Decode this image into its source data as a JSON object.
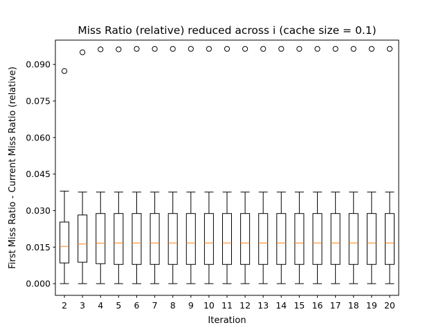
{
  "chart_data": {
    "type": "box",
    "title": "Miss Ratio (relative) reduced across i (cache size = 0.1)",
    "xlabel": "Iteration",
    "ylabel": "First Miss Ratio - Current Miss Ratio (relative)",
    "ylim": [
      -0.0048,
      0.1
    ],
    "yticks": [
      0.0,
      0.015,
      0.03,
      0.045,
      0.06,
      0.075,
      0.09
    ],
    "ytick_labels": [
      "0.000",
      "0.015",
      "0.030",
      "0.045",
      "0.060",
      "0.075",
      "0.090"
    ],
    "grid": false,
    "categories": [
      "2",
      "3",
      "4",
      "5",
      "6",
      "7",
      "8",
      "9",
      "10",
      "11",
      "12",
      "13",
      "14",
      "15",
      "16",
      "17",
      "18",
      "19",
      "20"
    ],
    "boxes": [
      {
        "label": "2",
        "whisker_low": 0.0,
        "q1": 0.0085,
        "median": 0.0153,
        "q3": 0.0253,
        "whisker_high": 0.038,
        "fliers": [
          0.0873
        ]
      },
      {
        "label": "3",
        "whisker_low": 0.0,
        "q1": 0.0088,
        "median": 0.0163,
        "q3": 0.0282,
        "whisker_high": 0.0376,
        "fliers": [
          0.095
        ]
      },
      {
        "label": "4",
        "whisker_low": 0.0,
        "q1": 0.0082,
        "median": 0.0166,
        "q3": 0.0288,
        "whisker_high": 0.0376,
        "fliers": [
          0.0962
        ]
      },
      {
        "label": "5",
        "whisker_low": 0.0,
        "q1": 0.0079,
        "median": 0.0167,
        "q3": 0.0288,
        "whisker_high": 0.0376,
        "fliers": [
          0.0962
        ]
      },
      {
        "label": "6",
        "whisker_low": 0.0,
        "q1": 0.0079,
        "median": 0.0167,
        "q3": 0.0288,
        "whisker_high": 0.0376,
        "fliers": [
          0.0964
        ]
      },
      {
        "label": "7",
        "whisker_low": 0.0,
        "q1": 0.0079,
        "median": 0.0167,
        "q3": 0.0288,
        "whisker_high": 0.0376,
        "fliers": [
          0.0964
        ]
      },
      {
        "label": "8",
        "whisker_low": 0.0,
        "q1": 0.0079,
        "median": 0.0167,
        "q3": 0.0288,
        "whisker_high": 0.0376,
        "fliers": [
          0.0964
        ]
      },
      {
        "label": "9",
        "whisker_low": 0.0,
        "q1": 0.0079,
        "median": 0.0167,
        "q3": 0.0288,
        "whisker_high": 0.0376,
        "fliers": [
          0.0964
        ]
      },
      {
        "label": "10",
        "whisker_low": 0.0,
        "q1": 0.0079,
        "median": 0.0167,
        "q3": 0.0288,
        "whisker_high": 0.0376,
        "fliers": [
          0.0964
        ]
      },
      {
        "label": "11",
        "whisker_low": 0.0,
        "q1": 0.0079,
        "median": 0.0167,
        "q3": 0.0288,
        "whisker_high": 0.0376,
        "fliers": [
          0.0964
        ]
      },
      {
        "label": "12",
        "whisker_low": 0.0,
        "q1": 0.0079,
        "median": 0.0167,
        "q3": 0.0288,
        "whisker_high": 0.0376,
        "fliers": [
          0.0964
        ]
      },
      {
        "label": "13",
        "whisker_low": 0.0,
        "q1": 0.0079,
        "median": 0.0167,
        "q3": 0.0288,
        "whisker_high": 0.0376,
        "fliers": [
          0.0964
        ]
      },
      {
        "label": "14",
        "whisker_low": 0.0,
        "q1": 0.0079,
        "median": 0.0167,
        "q3": 0.0288,
        "whisker_high": 0.0376,
        "fliers": [
          0.0964
        ]
      },
      {
        "label": "15",
        "whisker_low": 0.0,
        "q1": 0.0079,
        "median": 0.0167,
        "q3": 0.0288,
        "whisker_high": 0.0376,
        "fliers": [
          0.0964
        ]
      },
      {
        "label": "16",
        "whisker_low": 0.0,
        "q1": 0.0079,
        "median": 0.0167,
        "q3": 0.0288,
        "whisker_high": 0.0376,
        "fliers": [
          0.0964
        ]
      },
      {
        "label": "17",
        "whisker_low": 0.0,
        "q1": 0.0079,
        "median": 0.0167,
        "q3": 0.0288,
        "whisker_high": 0.0376,
        "fliers": [
          0.0964
        ]
      },
      {
        "label": "18",
        "whisker_low": 0.0,
        "q1": 0.0079,
        "median": 0.0167,
        "q3": 0.0288,
        "whisker_high": 0.0376,
        "fliers": [
          0.0964
        ]
      },
      {
        "label": "19",
        "whisker_low": 0.0,
        "q1": 0.0079,
        "median": 0.0167,
        "q3": 0.0288,
        "whisker_high": 0.0376,
        "fliers": [
          0.0964
        ]
      },
      {
        "label": "20",
        "whisker_low": 0.0,
        "q1": 0.0079,
        "median": 0.0167,
        "q3": 0.0288,
        "whisker_high": 0.0376,
        "fliers": [
          0.0964
        ]
      }
    ],
    "colors": {
      "median": "#ff7f0e",
      "box": "#000000",
      "background": "#ffffff"
    }
  }
}
